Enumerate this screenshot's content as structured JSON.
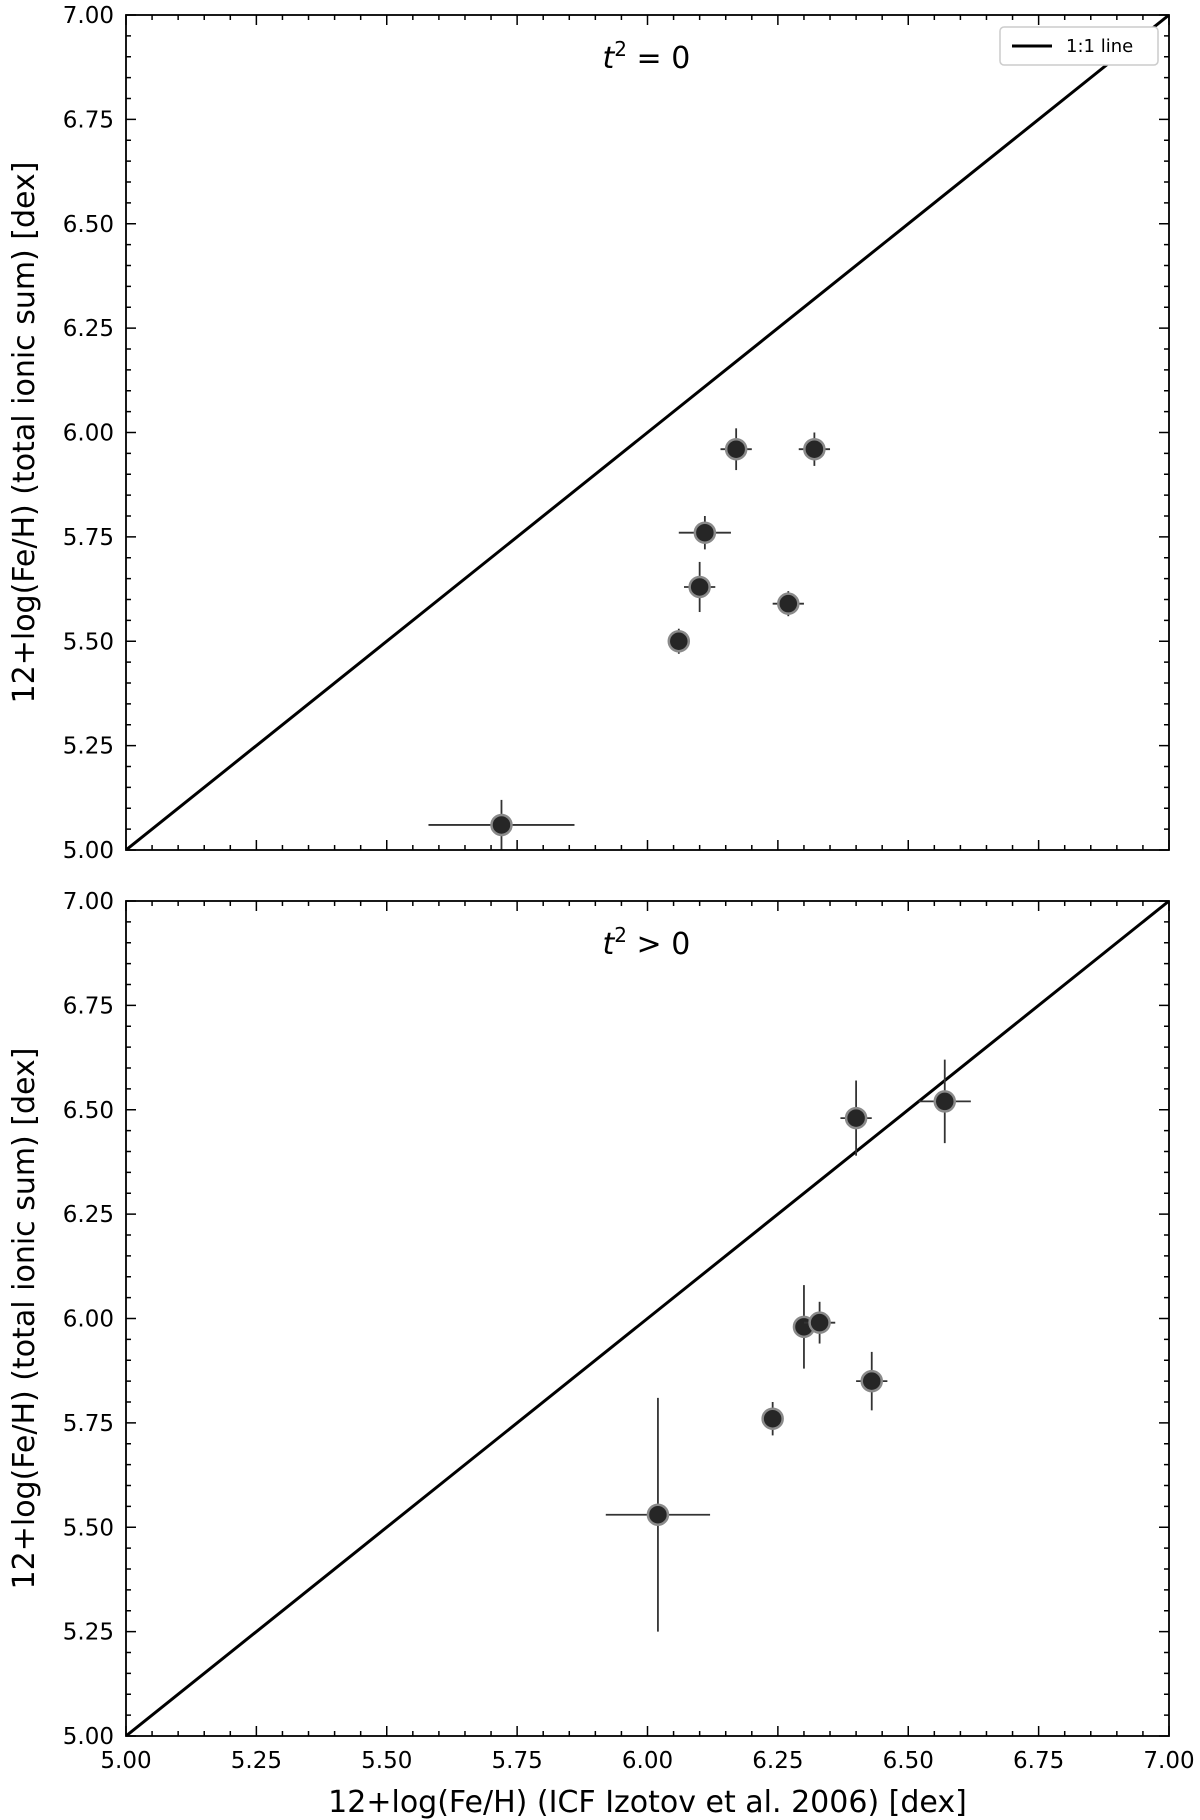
{
  "chart_data": [
    {
      "type": "scatter",
      "annotation": {
        "t": "t",
        "exp": "2",
        "rel": " = 0"
      },
      "xlabel": "",
      "ylabel": "12+log(Fe/H) (total ionic sum) [dex]",
      "xlim": [
        5.0,
        7.0
      ],
      "ylim": [
        5.0,
        7.0
      ],
      "xticks": [
        "5.00",
        "5.25",
        "5.50",
        "5.75",
        "6.00",
        "6.25",
        "6.50",
        "6.75",
        "7.00"
      ],
      "yticks": [
        "5.00",
        "5.25",
        "5.50",
        "5.75",
        "6.00",
        "6.25",
        "6.50",
        "6.75",
        "7.00"
      ],
      "show_xtick_labels": false,
      "legend": {
        "label": "1:1 line",
        "placement": "top-right"
      },
      "reference_line": {
        "label": "1:1 line",
        "from": [
          5.0,
          5.0
        ],
        "to": [
          7.0,
          7.0
        ]
      },
      "points": [
        {
          "x": 5.72,
          "y": 5.06,
          "xerr": 0.14,
          "yerr": 0.06
        },
        {
          "x": 6.06,
          "y": 5.5,
          "xerr": 0.02,
          "yerr": 0.03
        },
        {
          "x": 6.1,
          "y": 5.63,
          "xerr": 0.03,
          "yerr": 0.06
        },
        {
          "x": 6.11,
          "y": 5.76,
          "xerr": 0.05,
          "yerr": 0.04
        },
        {
          "x": 6.17,
          "y": 5.96,
          "xerr": 0.03,
          "yerr": 0.05
        },
        {
          "x": 6.27,
          "y": 5.59,
          "xerr": 0.03,
          "yerr": 0.03
        },
        {
          "x": 6.32,
          "y": 5.96,
          "xerr": 0.03,
          "yerr": 0.04
        }
      ]
    },
    {
      "type": "scatter",
      "annotation": {
        "t": "t",
        "exp": "2",
        "rel": " > 0"
      },
      "xlabel": "12+log(Fe/H) (ICF Izotov et al. 2006) [dex]",
      "ylabel": "12+log(Fe/H) (total ionic sum) [dex]",
      "xlim": [
        5.0,
        7.0
      ],
      "ylim": [
        5.0,
        7.0
      ],
      "xticks": [
        "5.00",
        "5.25",
        "5.50",
        "5.75",
        "6.00",
        "6.25",
        "6.50",
        "6.75",
        "7.00"
      ],
      "yticks": [
        "5.00",
        "5.25",
        "5.50",
        "5.75",
        "6.00",
        "6.25",
        "6.50",
        "6.75",
        "7.00"
      ],
      "show_xtick_labels": true,
      "legend": null,
      "reference_line": {
        "label": "1:1 line",
        "from": [
          5.0,
          5.0
        ],
        "to": [
          7.0,
          7.0
        ]
      },
      "points": [
        {
          "x": 6.02,
          "y": 5.53,
          "xerr": 0.1,
          "yerr": 0.28
        },
        {
          "x": 6.24,
          "y": 5.76,
          "xerr": 0.02,
          "yerr": 0.04
        },
        {
          "x": 6.3,
          "y": 5.98,
          "xerr": 0.02,
          "yerr": 0.1
        },
        {
          "x": 6.33,
          "y": 5.99,
          "xerr": 0.03,
          "yerr": 0.05
        },
        {
          "x": 6.4,
          "y": 6.48,
          "xerr": 0.03,
          "yerr": 0.09
        },
        {
          "x": 6.43,
          "y": 5.85,
          "xerr": 0.03,
          "yerr": 0.07
        },
        {
          "x": 6.57,
          "y": 6.52,
          "xerr": 0.05,
          "yerr": 0.1
        }
      ]
    }
  ]
}
